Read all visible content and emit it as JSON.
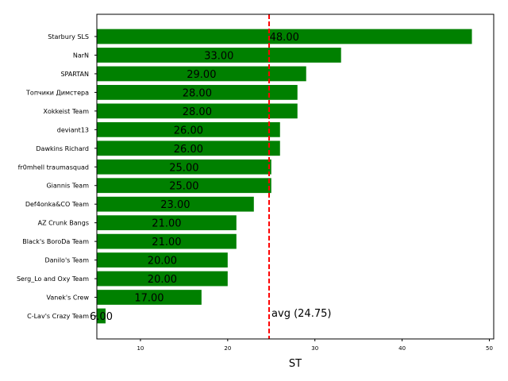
{
  "chart_data": {
    "type": "bar",
    "orientation": "horizontal",
    "categories": [
      "Starbury SLS",
      "NarN",
      "SPARTAN",
      "Топчики Димстера",
      "Xokkeist Team",
      "deviant13",
      "Dawkins Richard",
      "fr0mhell traumasquad",
      "Giannis Team",
      "Def4onka&CO Team",
      "AZ Crunk Bangs",
      "Black's BoroDa Team",
      "Danilo's Team",
      "Serg_Lo and Oxy Team",
      "Vanek's Crew",
      "C-Lav's Crazy Team"
    ],
    "values": [
      48,
      33,
      29,
      28,
      28,
      26,
      26,
      25,
      25,
      23,
      21,
      21,
      20,
      20,
      17,
      6
    ],
    "value_labels": [
      "48.00",
      "33.00",
      "29.00",
      "28.00",
      "28.00",
      "26.00",
      "26.00",
      "25.00",
      "25.00",
      "23.00",
      "21.00",
      "21.00",
      "20.00",
      "20.00",
      "17.00",
      "6.00"
    ],
    "xlabel": "ST",
    "ylabel": "",
    "title": "",
    "xlim": [
      5,
      50.5
    ],
    "xticks": [
      10,
      20,
      30,
      40,
      50
    ],
    "bar_color": "#008000",
    "reference_line": {
      "value": 24.75,
      "label": "avg (24.75)",
      "color": "#ff0000",
      "style": "dashed"
    },
    "grid": false
  }
}
